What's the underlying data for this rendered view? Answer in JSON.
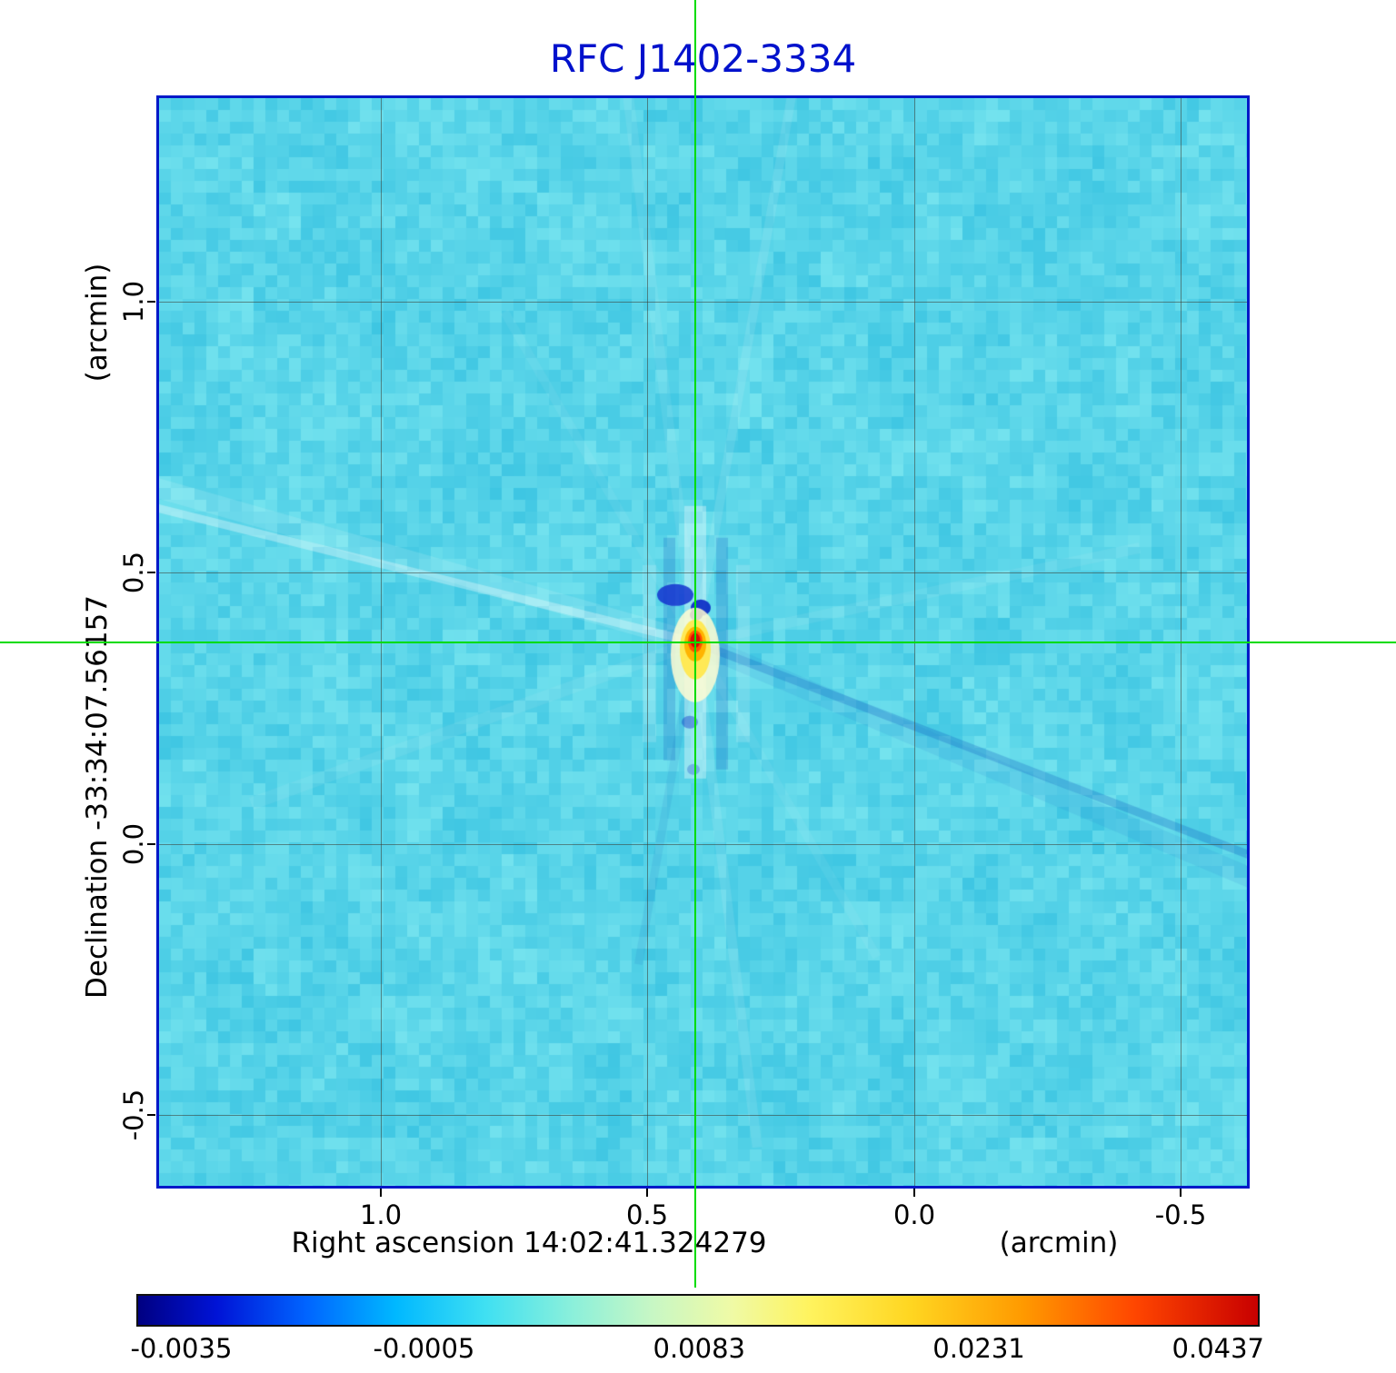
{
  "chart_data": {
    "type": "heatmap",
    "title": "RFC J1402-3334",
    "x_axis": {
      "label": "Right ascension  14:02:41.324279",
      "units": "(arcmin)",
      "tick_labels": [
        "1.0",
        "0.5",
        "0.0",
        "-0.5"
      ],
      "tick_values": [
        1.0,
        0.5,
        0.0,
        -0.5
      ],
      "range": [
        1.415,
        -0.624
      ]
    },
    "y_axis": {
      "label": "Declination  -33:34:07.56157",
      "units": "(arcmin)",
      "tick_labels": [
        "1.0",
        "0.5",
        "0.0",
        "-0.5"
      ],
      "tick_values": [
        1.0,
        0.5,
        0.0,
        -0.5
      ],
      "range": [
        -0.63,
        1.375
      ]
    },
    "grid": true,
    "crosshair": {
      "x_arcmin": 0.41,
      "y_arcmin": 0.372,
      "color": "#00dc00"
    },
    "source": {
      "x_arcmin": 0.41,
      "y_arcmin": 0.372,
      "peak_value": 0.0437
    },
    "background_level": 0.003,
    "colorbar": {
      "tick_labels": [
        "-0.0035",
        "-0.0005",
        "0.0083",
        "0.0231",
        "0.0437"
      ],
      "tick_positions": [
        0.04,
        0.256,
        0.501,
        0.75,
        0.963
      ],
      "stops": [
        {
          "pos": 0.0,
          "color": "#000082"
        },
        {
          "pos": 0.07,
          "color": "#0013d6"
        },
        {
          "pos": 0.15,
          "color": "#0064ff"
        },
        {
          "pos": 0.23,
          "color": "#00b8ff"
        },
        {
          "pos": 0.31,
          "color": "#3fe0f2"
        },
        {
          "pos": 0.39,
          "color": "#8df0da"
        },
        {
          "pos": 0.46,
          "color": "#c8f7c4"
        },
        {
          "pos": 0.53,
          "color": "#effaa6"
        },
        {
          "pos": 0.6,
          "color": "#fff35e"
        },
        {
          "pos": 0.69,
          "color": "#ffd621"
        },
        {
          "pos": 0.79,
          "color": "#ff9a00"
        },
        {
          "pos": 0.89,
          "color": "#ff4600"
        },
        {
          "pos": 1.0,
          "color": "#c80000"
        }
      ]
    },
    "colors": {
      "title": "#0011cc",
      "plot_border": "#0019c8",
      "background_cyan": "#5ad5e9",
      "grid_line": "rgba(60,60,50,0.55)",
      "crosshair_green": "#00dc00"
    }
  }
}
